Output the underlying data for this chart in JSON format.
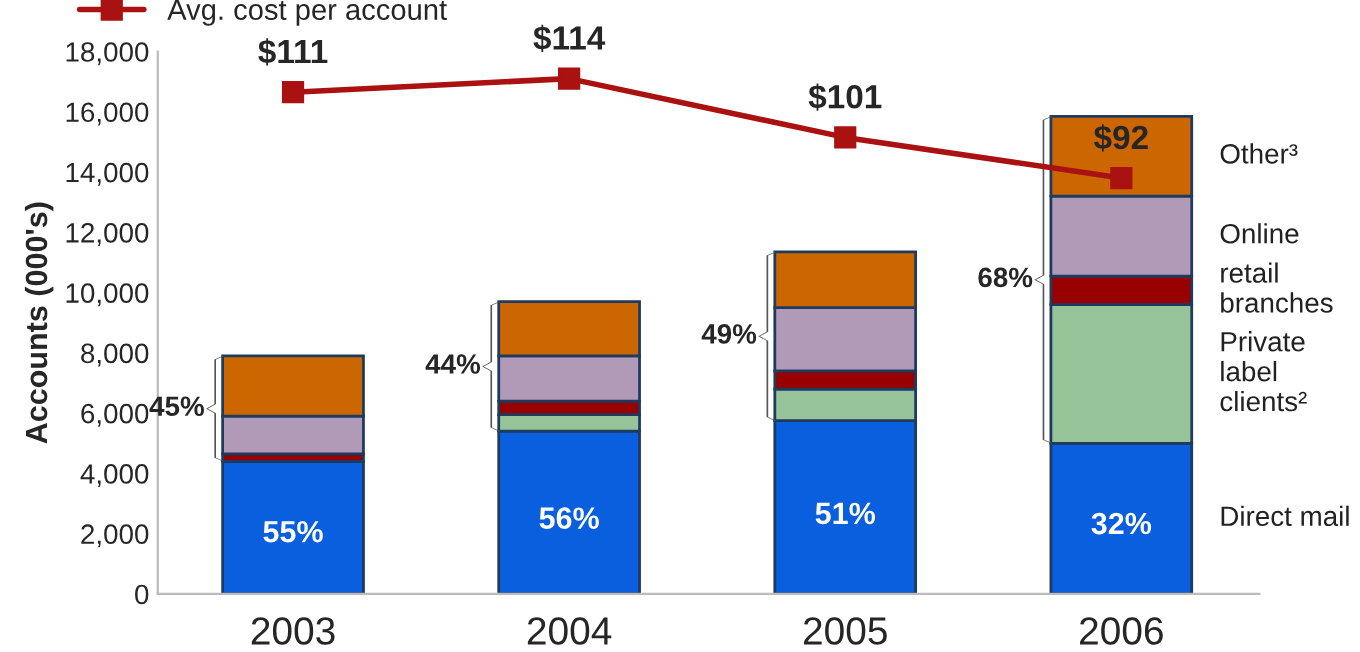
{
  "chart_data": {
    "type": "bar",
    "stacked": true,
    "ylabel": "Accounts (000's)",
    "categories": [
      "2003",
      "2004",
      "2005",
      "2006"
    ],
    "series": [
      {
        "name": "Direct mail",
        "color": "#0a5fde",
        "values": [
          4400,
          5400,
          5750,
          5000
        ]
      },
      {
        "name": "Private label clients²",
        "color": "#96c498",
        "values": [
          0,
          550,
          1050,
          4600
        ]
      },
      {
        "name": "retail branches",
        "color": "#990000",
        "values": [
          250,
          450,
          600,
          950
        ]
      },
      {
        "name": "Online",
        "color": "#b09ab8",
        "values": [
          1250,
          1500,
          2100,
          2650
        ]
      },
      {
        "name": "Other³",
        "color": "#cc6600",
        "values": [
          2000,
          1800,
          1850,
          2650
        ]
      },
      {
        "name": "Avg. cost per account",
        "type": "line",
        "axis": "y2",
        "color": "#aa1111",
        "marker": "square",
        "values": [
          111,
          114,
          101,
          92
        ],
        "value_labels": [
          "$111",
          "$114",
          "$101",
          "$92"
        ]
      }
    ],
    "annotations": [
      "45%",
      "44%",
      "49%",
      "68%",
      "55%",
      "56%",
      "51%",
      "32%"
    ],
    "ylim": [
      0,
      18000
    ],
    "yticks": [
      {
        "value": 0,
        "label": "0"
      },
      {
        "value": 2000,
        "label": "2,000"
      },
      {
        "value": 4000,
        "label": "4,000"
      },
      {
        "value": 6000,
        "label": "6,000"
      },
      {
        "value": 8000,
        "label": "8,000"
      },
      {
        "value": 10000,
        "label": "10,000"
      },
      {
        "value": 12000,
        "label": "12,000"
      },
      {
        "value": 14000,
        "label": "14,000"
      },
      {
        "value": 16000,
        "label": "16,000"
      },
      {
        "value": 18000,
        "label": "18,000"
      }
    ],
    "y2lim": [
      0,
      120
    ],
    "tick_labels": "xy",
    "grid": false,
    "legend": "top left"
  }
}
